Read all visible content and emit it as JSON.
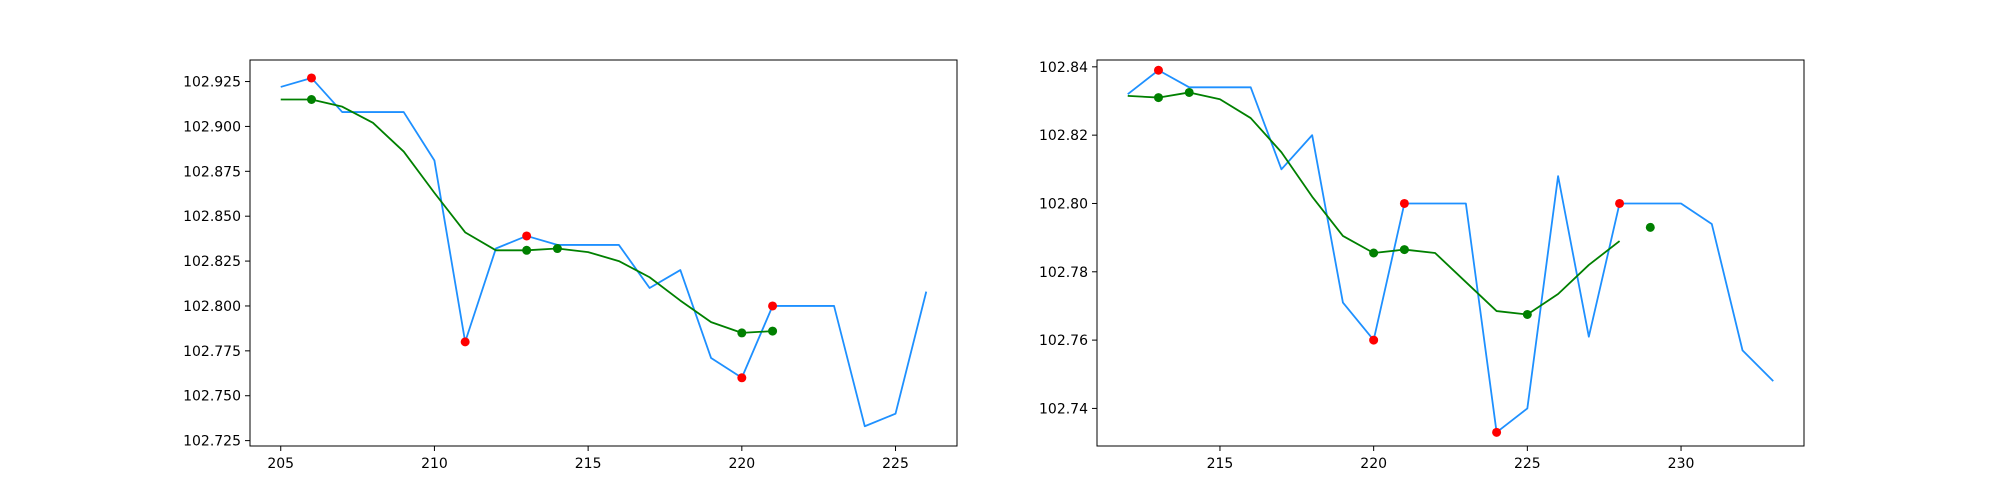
{
  "colors": {
    "price_line": "#1e90ff",
    "smooth_line": "#008000",
    "red_marker": "#ff0000",
    "green_marker": "#008000",
    "axes": "#000000"
  },
  "chart_data": [
    {
      "type": "line",
      "title": "",
      "xlabel": "",
      "ylabel": "",
      "xlim": [
        204,
        227
      ],
      "ylim": [
        102.722,
        102.937
      ],
      "x_ticks": [
        205,
        210,
        215,
        220,
        225
      ],
      "y_ticks": [
        102.725,
        102.75,
        102.775,
        102.8,
        102.825,
        102.85,
        102.875,
        102.9,
        102.925
      ],
      "x_tick_labels": [
        "205",
        "210",
        "215",
        "220",
        "225"
      ],
      "y_tick_labels": [
        "102.725",
        "102.750",
        "102.775",
        "102.800",
        "102.825",
        "102.850",
        "102.875",
        "102.900",
        "102.925"
      ],
      "grid": false,
      "series": [
        {
          "role": "price",
          "color": "#1e90ff",
          "x": [
            205,
            206,
            207,
            208,
            209,
            210,
            211,
            212,
            213,
            214,
            215,
            216,
            217,
            218,
            219,
            220,
            221,
            222,
            223,
            224,
            225,
            226
          ],
          "y": [
            102.922,
            102.927,
            102.908,
            102.908,
            102.908,
            102.881,
            102.78,
            102.832,
            102.839,
            102.834,
            102.834,
            102.834,
            102.81,
            102.82,
            102.771,
            102.76,
            102.8,
            102.8,
            102.8,
            102.733,
            102.74,
            102.808
          ]
        },
        {
          "role": "smoothed",
          "color": "#008000",
          "x": [
            205,
            206,
            207,
            208,
            209,
            210,
            211,
            212,
            213,
            214,
            215,
            216,
            217,
            218,
            219,
            220,
            221
          ],
          "y": [
            102.915,
            102.915,
            102.911,
            102.902,
            102.886,
            102.863,
            102.841,
            102.831,
            102.831,
            102.832,
            102.83,
            102.825,
            102.816,
            102.803,
            102.791,
            102.785,
            102.786
          ]
        }
      ],
      "markers": [
        {
          "color": "#ff0000",
          "points": [
            [
              206,
              102.927
            ],
            [
              211,
              102.78
            ],
            [
              213,
              102.839
            ],
            [
              220,
              102.76
            ],
            [
              221,
              102.8
            ]
          ]
        },
        {
          "color": "#008000",
          "points": [
            [
              206,
              102.915
            ],
            [
              213,
              102.831
            ],
            [
              214,
              102.832
            ],
            [
              220,
              102.785
            ],
            [
              221,
              102.786
            ]
          ]
        }
      ]
    },
    {
      "type": "line",
      "title": "",
      "xlabel": "",
      "ylabel": "",
      "xlim": [
        211,
        234
      ],
      "ylim": [
        102.729,
        102.842
      ],
      "x_ticks": [
        215,
        220,
        225,
        230
      ],
      "y_ticks": [
        102.74,
        102.76,
        102.78,
        102.8,
        102.82,
        102.84
      ],
      "x_tick_labels": [
        "215",
        "220",
        "225",
        "230"
      ],
      "y_tick_labels": [
        "102.74",
        "102.76",
        "102.78",
        "102.80",
        "102.82",
        "102.84"
      ],
      "grid": false,
      "series": [
        {
          "role": "price",
          "color": "#1e90ff",
          "x": [
            212,
            213,
            214,
            215,
            216,
            217,
            218,
            219,
            220,
            221,
            222,
            223,
            224,
            225,
            226,
            227,
            228,
            229,
            230,
            231,
            232,
            233
          ],
          "y": [
            102.832,
            102.839,
            102.834,
            102.834,
            102.834,
            102.81,
            102.82,
            102.771,
            102.76,
            102.8,
            102.8,
            102.8,
            102.733,
            102.74,
            102.808,
            102.761,
            102.8,
            102.8,
            102.8,
            102.794,
            102.757,
            102.748
          ]
        },
        {
          "role": "smoothed",
          "color": "#008000",
          "x": [
            212,
            213,
            214,
            215,
            216,
            217,
            218,
            219,
            220,
            221,
            222,
            223,
            224,
            225,
            226,
            227,
            228
          ],
          "y": [
            102.8315,
            102.831,
            102.8325,
            102.8305,
            102.825,
            102.815,
            102.802,
            102.7905,
            102.7855,
            102.7865,
            102.7855,
            102.777,
            102.7685,
            102.7675,
            102.7735,
            102.782,
            102.789
          ]
        }
      ],
      "markers": [
        {
          "color": "#ff0000",
          "points": [
            [
              213,
              102.839
            ],
            [
              220,
              102.76
            ],
            [
              221,
              102.8
            ],
            [
              224,
              102.733
            ],
            [
              228,
              102.8
            ]
          ]
        },
        {
          "color": "#008000",
          "points": [
            [
              213,
              102.831
            ],
            [
              214,
              102.8325
            ],
            [
              220,
              102.7855
            ],
            [
              221,
              102.7865
            ],
            [
              225,
              102.7675
            ],
            [
              229,
              102.793
            ]
          ]
        }
      ]
    }
  ]
}
